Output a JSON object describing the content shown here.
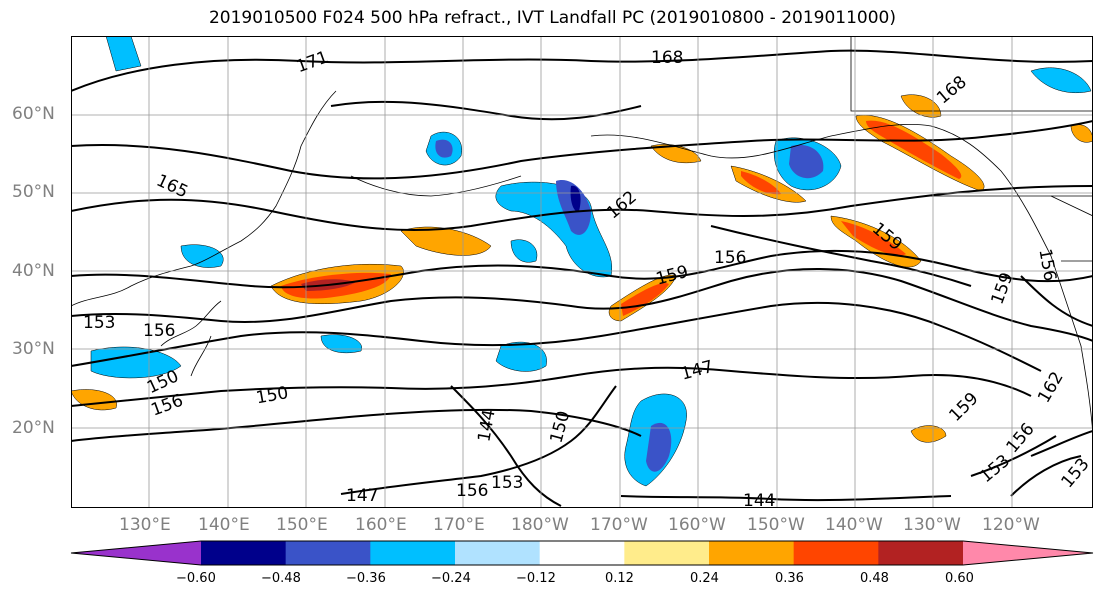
{
  "title": "2019010500 F024 500 hPa refract., IVT Landfall PC (2019010800 - 2019011000)",
  "lat_labels": [
    "60°N",
    "50°N",
    "40°N",
    "30°N",
    "20°N"
  ],
  "lon_labels": [
    "130°E",
    "140°E",
    "150°E",
    "160°E",
    "170°E",
    "180°W",
    "170°W",
    "160°W",
    "150°W",
    "140°W",
    "130°W",
    "120°W"
  ],
  "contour_labels": [
    "171",
    "168",
    "168",
    "165",
    "162",
    "159",
    "156",
    "159",
    "159",
    "156",
    "153",
    "150",
    "150",
    "147",
    "144",
    "150",
    "156",
    "153",
    "144",
    "162",
    "159",
    "156",
    "156",
    "147",
    "156",
    "153",
    "153"
  ],
  "colorbar": {
    "ticks": [
      "−0.60",
      "−0.48",
      "−0.36",
      "−0.24",
      "−0.12",
      "0.12",
      "0.24",
      "0.36",
      "0.48",
      "0.60"
    ],
    "colors": [
      "#9932cc",
      "#00008b",
      "#3a53c8",
      "#00bfff",
      "#b0e2ff",
      "#ffffff",
      "#ffec8b",
      "#ffa500",
      "#ff4500",
      "#b22222",
      "#ff88aa"
    ]
  }
}
